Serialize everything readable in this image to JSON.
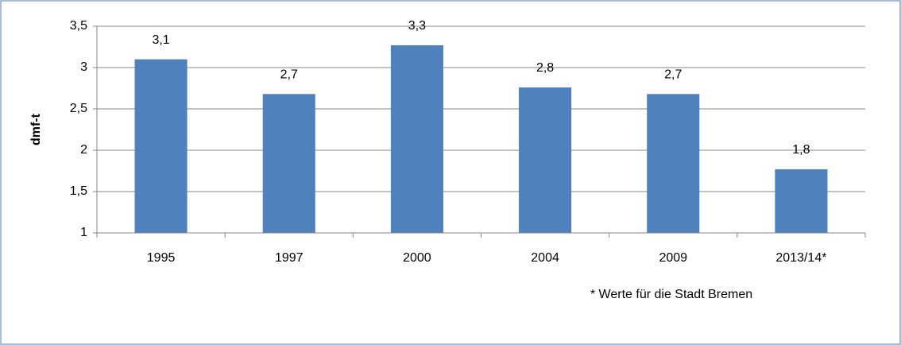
{
  "chart_data": {
    "type": "bar",
    "y_label": "dmf-t",
    "categories": [
      "1995",
      "1997",
      "2000",
      "2004",
      "2009",
      "2013/14*"
    ],
    "values": [
      3.1,
      2.68,
      3.27,
      2.76,
      2.68,
      1.77
    ],
    "value_labels": [
      "3,1",
      "2,7",
      "3,3",
      "2,8",
      "2,7",
      "1,8"
    ],
    "color": "#4f81bd",
    "ylim": [
      1,
      3.5
    ],
    "yticks": [
      1,
      {
        "value": 1.5,
        "label": "1,5"
      },
      2,
      {
        "value": 2.5,
        "label": "2,5"
      },
      3,
      {
        "value": 3.5,
        "label": "3,5"
      }
    ],
    "grid": true,
    "note": "* Werte für die Stadt Bremen"
  }
}
